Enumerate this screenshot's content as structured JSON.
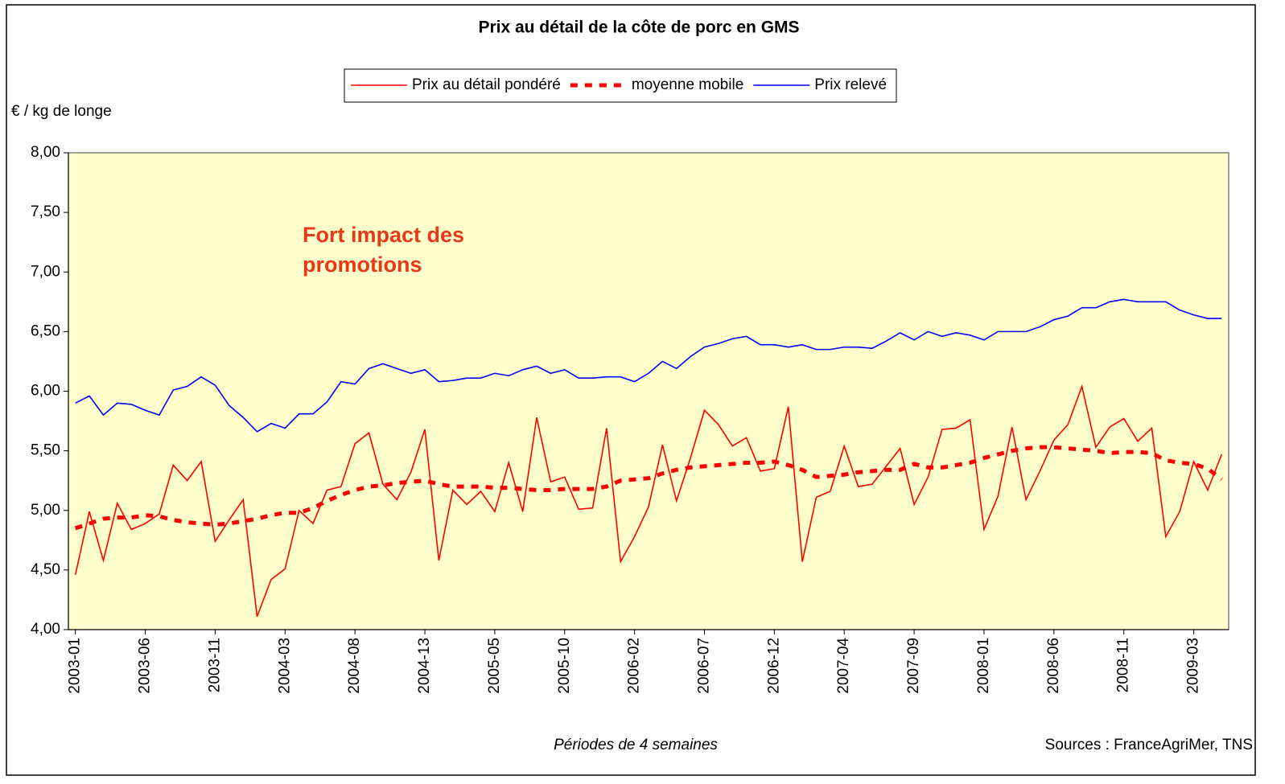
{
  "chart_data": {
    "type": "line",
    "title": "Prix au détail de la côte de porc en GMS",
    "y_label": "€ / kg de longe",
    "x_label": "Périodes de 4 semaines",
    "source": "Sources : FranceAgriMer, TNS",
    "annotation": [
      "Fort impact des",
      "promotions"
    ],
    "grid": false,
    "plot_background": "#ffffcc",
    "categories": [
      "2003-01",
      null,
      null,
      null,
      null,
      "2003-06",
      null,
      null,
      null,
      null,
      "2003-11",
      null,
      null,
      null,
      null,
      "2004-03",
      null,
      null,
      null,
      null,
      "2004-08",
      null,
      null,
      null,
      null,
      "2004-13",
      null,
      null,
      null,
      null,
      "2005-05",
      null,
      null,
      null,
      null,
      "2005-10",
      null,
      null,
      null,
      null,
      "2006-02",
      null,
      null,
      null,
      null,
      "2006-07",
      null,
      null,
      null,
      null,
      "2006-12",
      null,
      null,
      null,
      null,
      "2007-04",
      null,
      null,
      null,
      null,
      "2007-09",
      null,
      null,
      null,
      null,
      "2008-01",
      null,
      null,
      null,
      null,
      "2008-06",
      null,
      null,
      null,
      null,
      "2008-11",
      null,
      null,
      null,
      null,
      "2009-03",
      null,
      null
    ],
    "ylim": [
      4,
      8
    ],
    "yticks": [
      {
        "value": 4,
        "label": "4,00"
      },
      {
        "value": 4.5,
        "label": "4,50"
      },
      {
        "value": 5,
        "label": "5,00"
      },
      {
        "value": 5.5,
        "label": "5,50"
      },
      {
        "value": 6,
        "label": "6,00"
      },
      {
        "value": 6.5,
        "label": "6,50"
      },
      {
        "value": 7,
        "label": "7,00"
      },
      {
        "value": 7.5,
        "label": "7,50"
      },
      {
        "value": 8,
        "label": "8,00"
      }
    ],
    "series": [
      {
        "name": "Prix au détail pondéré",
        "color": "#ff0000",
        "style": "solid",
        "values": [
          4.46,
          4.99,
          4.58,
          5.06,
          4.84,
          4.89,
          4.97,
          5.38,
          5.25,
          5.41,
          4.74,
          4.92,
          5.09,
          4.11,
          4.42,
          4.51,
          5.0,
          4.89,
          5.17,
          5.2,
          5.56,
          5.65,
          5.22,
          5.09,
          5.32,
          5.68,
          4.58,
          5.17,
          5.05,
          5.16,
          4.99,
          5.4,
          4.99,
          5.78,
          5.24,
          5.28,
          5.01,
          5.02,
          5.69,
          4.57,
          4.78,
          5.03,
          5.55,
          5.08,
          5.44,
          5.84,
          5.72,
          5.54,
          5.61,
          5.33,
          5.35,
          5.87,
          4.57,
          5.11,
          5.16,
          5.54,
          5.2,
          5.22,
          5.37,
          5.52,
          5.05,
          5.28,
          5.68,
          5.69,
          5.76,
          4.84,
          5.12,
          5.7,
          5.09,
          5.33,
          5.59,
          5.72,
          6.04,
          5.53,
          5.7,
          5.77,
          5.58,
          5.69,
          4.78,
          4.99,
          5.41,
          5.17,
          5.47
        ]
      },
      {
        "name": "moyenne mobile",
        "color": "#ff0000",
        "style": "dashed",
        "values": [
          4.85,
          4.89,
          4.93,
          4.94,
          4.94,
          4.96,
          4.95,
          4.92,
          4.9,
          4.89,
          4.88,
          4.89,
          4.91,
          4.93,
          4.96,
          4.98,
          4.98,
          5.02,
          5.08,
          5.13,
          5.17,
          5.2,
          5.21,
          5.23,
          5.24,
          5.25,
          5.22,
          5.2,
          5.2,
          5.2,
          5.19,
          5.19,
          5.18,
          5.17,
          5.17,
          5.18,
          5.18,
          5.18,
          5.2,
          5.25,
          5.26,
          5.27,
          5.31,
          5.34,
          5.36,
          5.37,
          5.38,
          5.39,
          5.4,
          5.4,
          5.41,
          5.38,
          5.34,
          5.28,
          5.29,
          5.3,
          5.32,
          5.33,
          5.34,
          5.34,
          5.39,
          5.36,
          5.36,
          5.38,
          5.4,
          5.44,
          5.47,
          5.5,
          5.52,
          5.53,
          5.53,
          5.52,
          5.51,
          5.5,
          5.48,
          5.49,
          5.49,
          5.48,
          5.42,
          5.4,
          5.39,
          5.35,
          5.26
        ]
      },
      {
        "name": "Prix relevé",
        "color": "#0000ff",
        "style": "solid",
        "values": [
          5.9,
          5.96,
          5.8,
          5.9,
          5.89,
          5.84,
          5.8,
          6.01,
          6.04,
          6.12,
          6.05,
          5.88,
          5.78,
          5.66,
          5.73,
          5.69,
          5.81,
          5.81,
          5.91,
          6.08,
          6.06,
          6.19,
          6.23,
          6.19,
          6.15,
          6.18,
          6.08,
          6.09,
          6.11,
          6.11,
          6.15,
          6.13,
          6.18,
          6.21,
          6.15,
          6.18,
          6.11,
          6.11,
          6.12,
          6.12,
          6.08,
          6.15,
          6.25,
          6.19,
          6.29,
          6.37,
          6.4,
          6.44,
          6.46,
          6.39,
          6.39,
          6.37,
          6.39,
          6.35,
          6.35,
          6.37,
          6.37,
          6.36,
          6.42,
          6.49,
          6.43,
          6.5,
          6.46,
          6.49,
          6.47,
          6.43,
          6.5,
          6.5,
          6.5,
          6.54,
          6.6,
          6.63,
          6.7,
          6.7,
          6.75,
          6.77,
          6.75,
          6.75,
          6.75,
          6.68,
          6.64,
          6.61,
          6.61
        ]
      }
    ]
  }
}
